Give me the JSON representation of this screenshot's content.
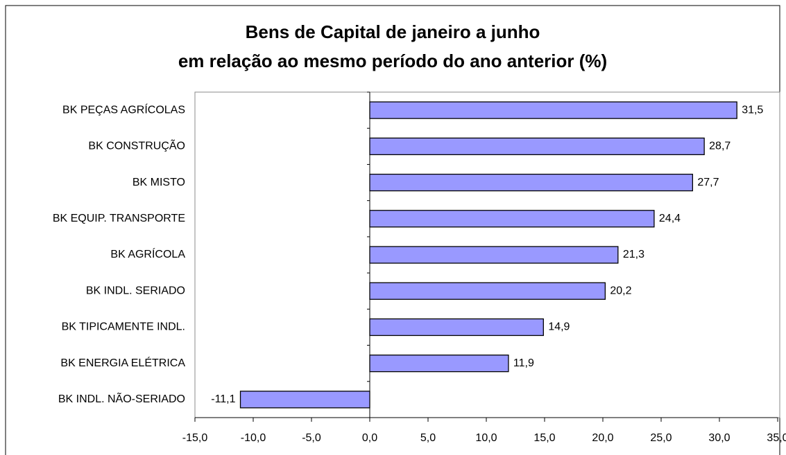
{
  "chart_data": {
    "type": "barh",
    "title": [
      "Bens de Capital  de janeiro a junho",
      "em relação ao mesmo período do ano anterior (%)"
    ],
    "categories": [
      "BK PEÇAS AGRÍCOLAS",
      "BK CONSTRUÇÃO",
      "BK MISTO",
      "BK EQUIP. TRANSPORTE",
      "BK AGRÍCOLA",
      "BK INDL. SERIADO",
      "BK TIPICAMENTE INDL.",
      "BK ENERGIA ELÉTRICA",
      "BK INDL. NÃO-SERIADO"
    ],
    "values": [
      31.5,
      28.7,
      27.7,
      24.4,
      21.3,
      20.2,
      14.9,
      11.9,
      -11.1
    ],
    "value_labels": [
      "31,5",
      "28,7",
      "27,7",
      "24,4",
      "21,3",
      "20,2",
      "14,9",
      "11,9",
      "-11,1"
    ],
    "color": "#9999ff",
    "xlim": [
      -15,
      35
    ],
    "xticks": [
      {
        "value": -15,
        "label": "-15,0"
      },
      {
        "value": -10,
        "label": "-10,0"
      },
      {
        "value": -5,
        "label": "-5,0"
      },
      {
        "value": 0,
        "label": "0,0"
      },
      {
        "value": 5,
        "label": "5,0"
      },
      {
        "value": 10,
        "label": "10,0"
      },
      {
        "value": 15,
        "label": "15,0"
      },
      {
        "value": 20,
        "label": "20,0"
      },
      {
        "value": 25,
        "label": "25,0"
      },
      {
        "value": 30,
        "label": "30,0"
      },
      {
        "value": 35,
        "label": "35,0"
      }
    ],
    "grid": false
  }
}
